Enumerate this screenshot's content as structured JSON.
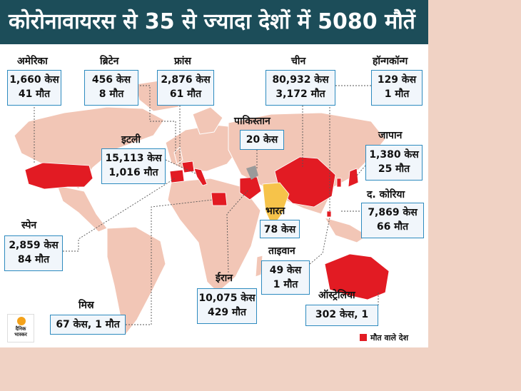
{
  "title": "कोरोनावायरस से 35 से ज्यादा देशों में 5080 मौतें",
  "legend": {
    "label": "मौत वाले देश",
    "color": "#e21b23"
  },
  "logo": {
    "line1": "दैनिक",
    "line2": "भास्कर"
  },
  "countries": {
    "usa": {
      "name": "अमेरिका",
      "cases": "1,660 केस",
      "deaths": "41 मौत"
    },
    "britain": {
      "name": "ब्रिटेन",
      "cases": "456 केस",
      "deaths": "8 मौत"
    },
    "france": {
      "name": "फ्रांस",
      "cases": "2,876 केस",
      "deaths": "61 मौत"
    },
    "china": {
      "name": "चीन",
      "cases": "80,932 केस",
      "deaths": "3,172 मौत"
    },
    "hongkong": {
      "name": "हॉन्गकॉन्ग",
      "cases": "129 केस",
      "deaths": "1 मौत"
    },
    "pakistan": {
      "name": "पाकिस्तान",
      "cases": "20 केस"
    },
    "italy": {
      "name": "इटली",
      "cases": "15,113 केस",
      "deaths": "1,016 मौत"
    },
    "japan": {
      "name": "जापान",
      "cases": "1,380 केस",
      "deaths": "25 मौत"
    },
    "korea": {
      "name": "द. कोरिया",
      "cases": "7,869 केस",
      "deaths": "66 मौत"
    },
    "india": {
      "name": "भारत",
      "cases": "78 केस"
    },
    "spain": {
      "name": "स्पेन",
      "cases": "2,859 केस",
      "deaths": "84 मौत"
    },
    "taiwan": {
      "name": "ताइवान",
      "cases": "49 केस",
      "deaths": "1 मौत"
    },
    "iran": {
      "name": "ईरान",
      "cases": "10,075 केस",
      "deaths": "429 मौत"
    },
    "australia": {
      "name": "ऑस्ट्रेलिया",
      "cases": "302 केस, 1"
    },
    "egypt": {
      "name": "मिस्र",
      "cases": "67 केस, 1 मौत"
    }
  }
}
